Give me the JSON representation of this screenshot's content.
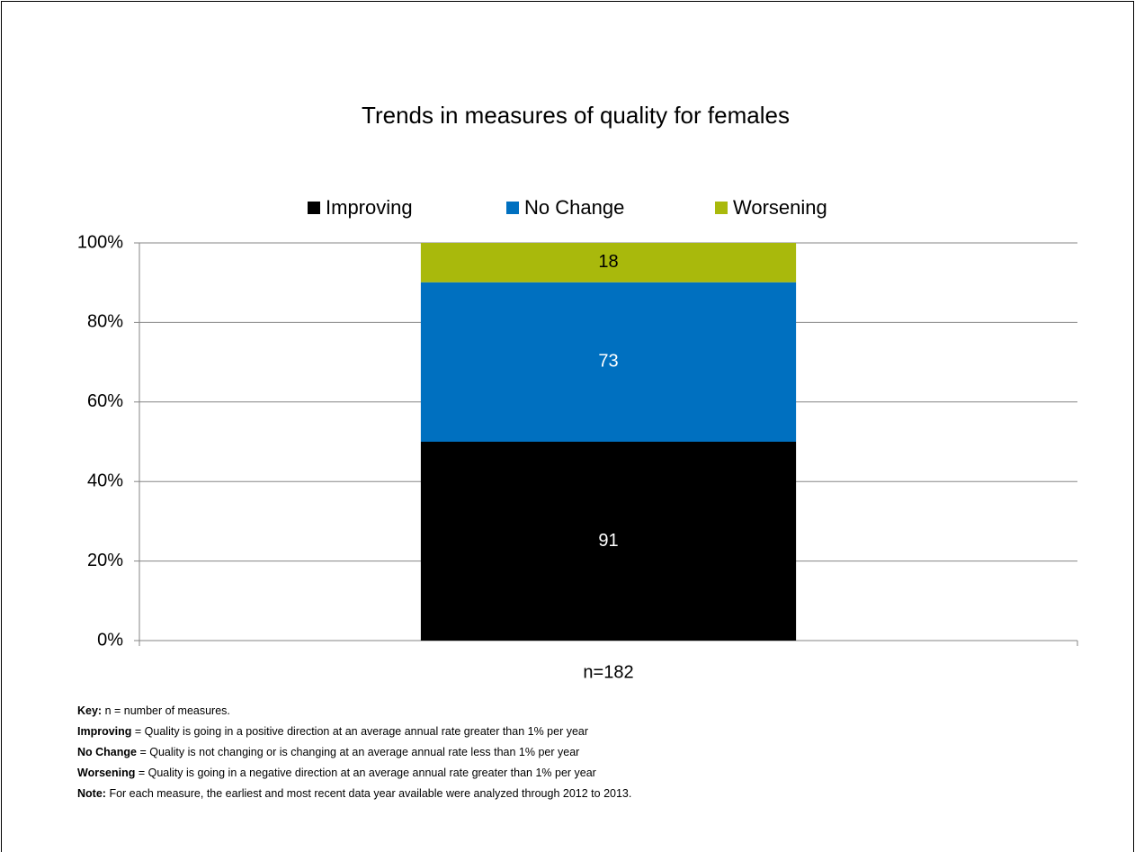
{
  "chart_data": {
    "type": "bar",
    "stacking": "percent",
    "title": "Trends in measures of quality for females",
    "categories": [
      "n=182"
    ],
    "series": [
      {
        "name": "Improving",
        "color": "#000000",
        "label_color": "#ffffff",
        "values": [
          91
        ]
      },
      {
        "name": "No Change",
        "color": "#0070c0",
        "label_color": "#ffffff",
        "values": [
          73
        ]
      },
      {
        "name": "Worsening",
        "color": "#a9b90c",
        "label_color": "#000000",
        "values": [
          18
        ]
      }
    ],
    "ylim": [
      0,
      100
    ],
    "yticks": [
      {
        "value": 0,
        "label": "0%"
      },
      {
        "value": 20,
        "label": "20%"
      },
      {
        "value": 40,
        "label": "40%"
      },
      {
        "value": 60,
        "label": "60%"
      },
      {
        "value": 80,
        "label": "80%"
      },
      {
        "value": 100,
        "label": "100%"
      }
    ],
    "grid": true,
    "legend": "top"
  },
  "notes": [
    {
      "term": "Key:",
      "text": "n = number of measures."
    },
    {
      "term": "Improving",
      "text": "= Quality is going in a positive direction at an average annual rate greater than 1% per year"
    },
    {
      "term": "No Change",
      "text": "= Quality is not changing or is changing at an average annual rate less than 1% per year"
    },
    {
      "term": "Worsening",
      "text": "= Quality is going in a negative direction at an average annual rate greater than 1% per year"
    },
    {
      "term": "Note:",
      "text": "For each measure, the earliest and most recent data year available were analyzed through 2012 to 2013."
    }
  ]
}
